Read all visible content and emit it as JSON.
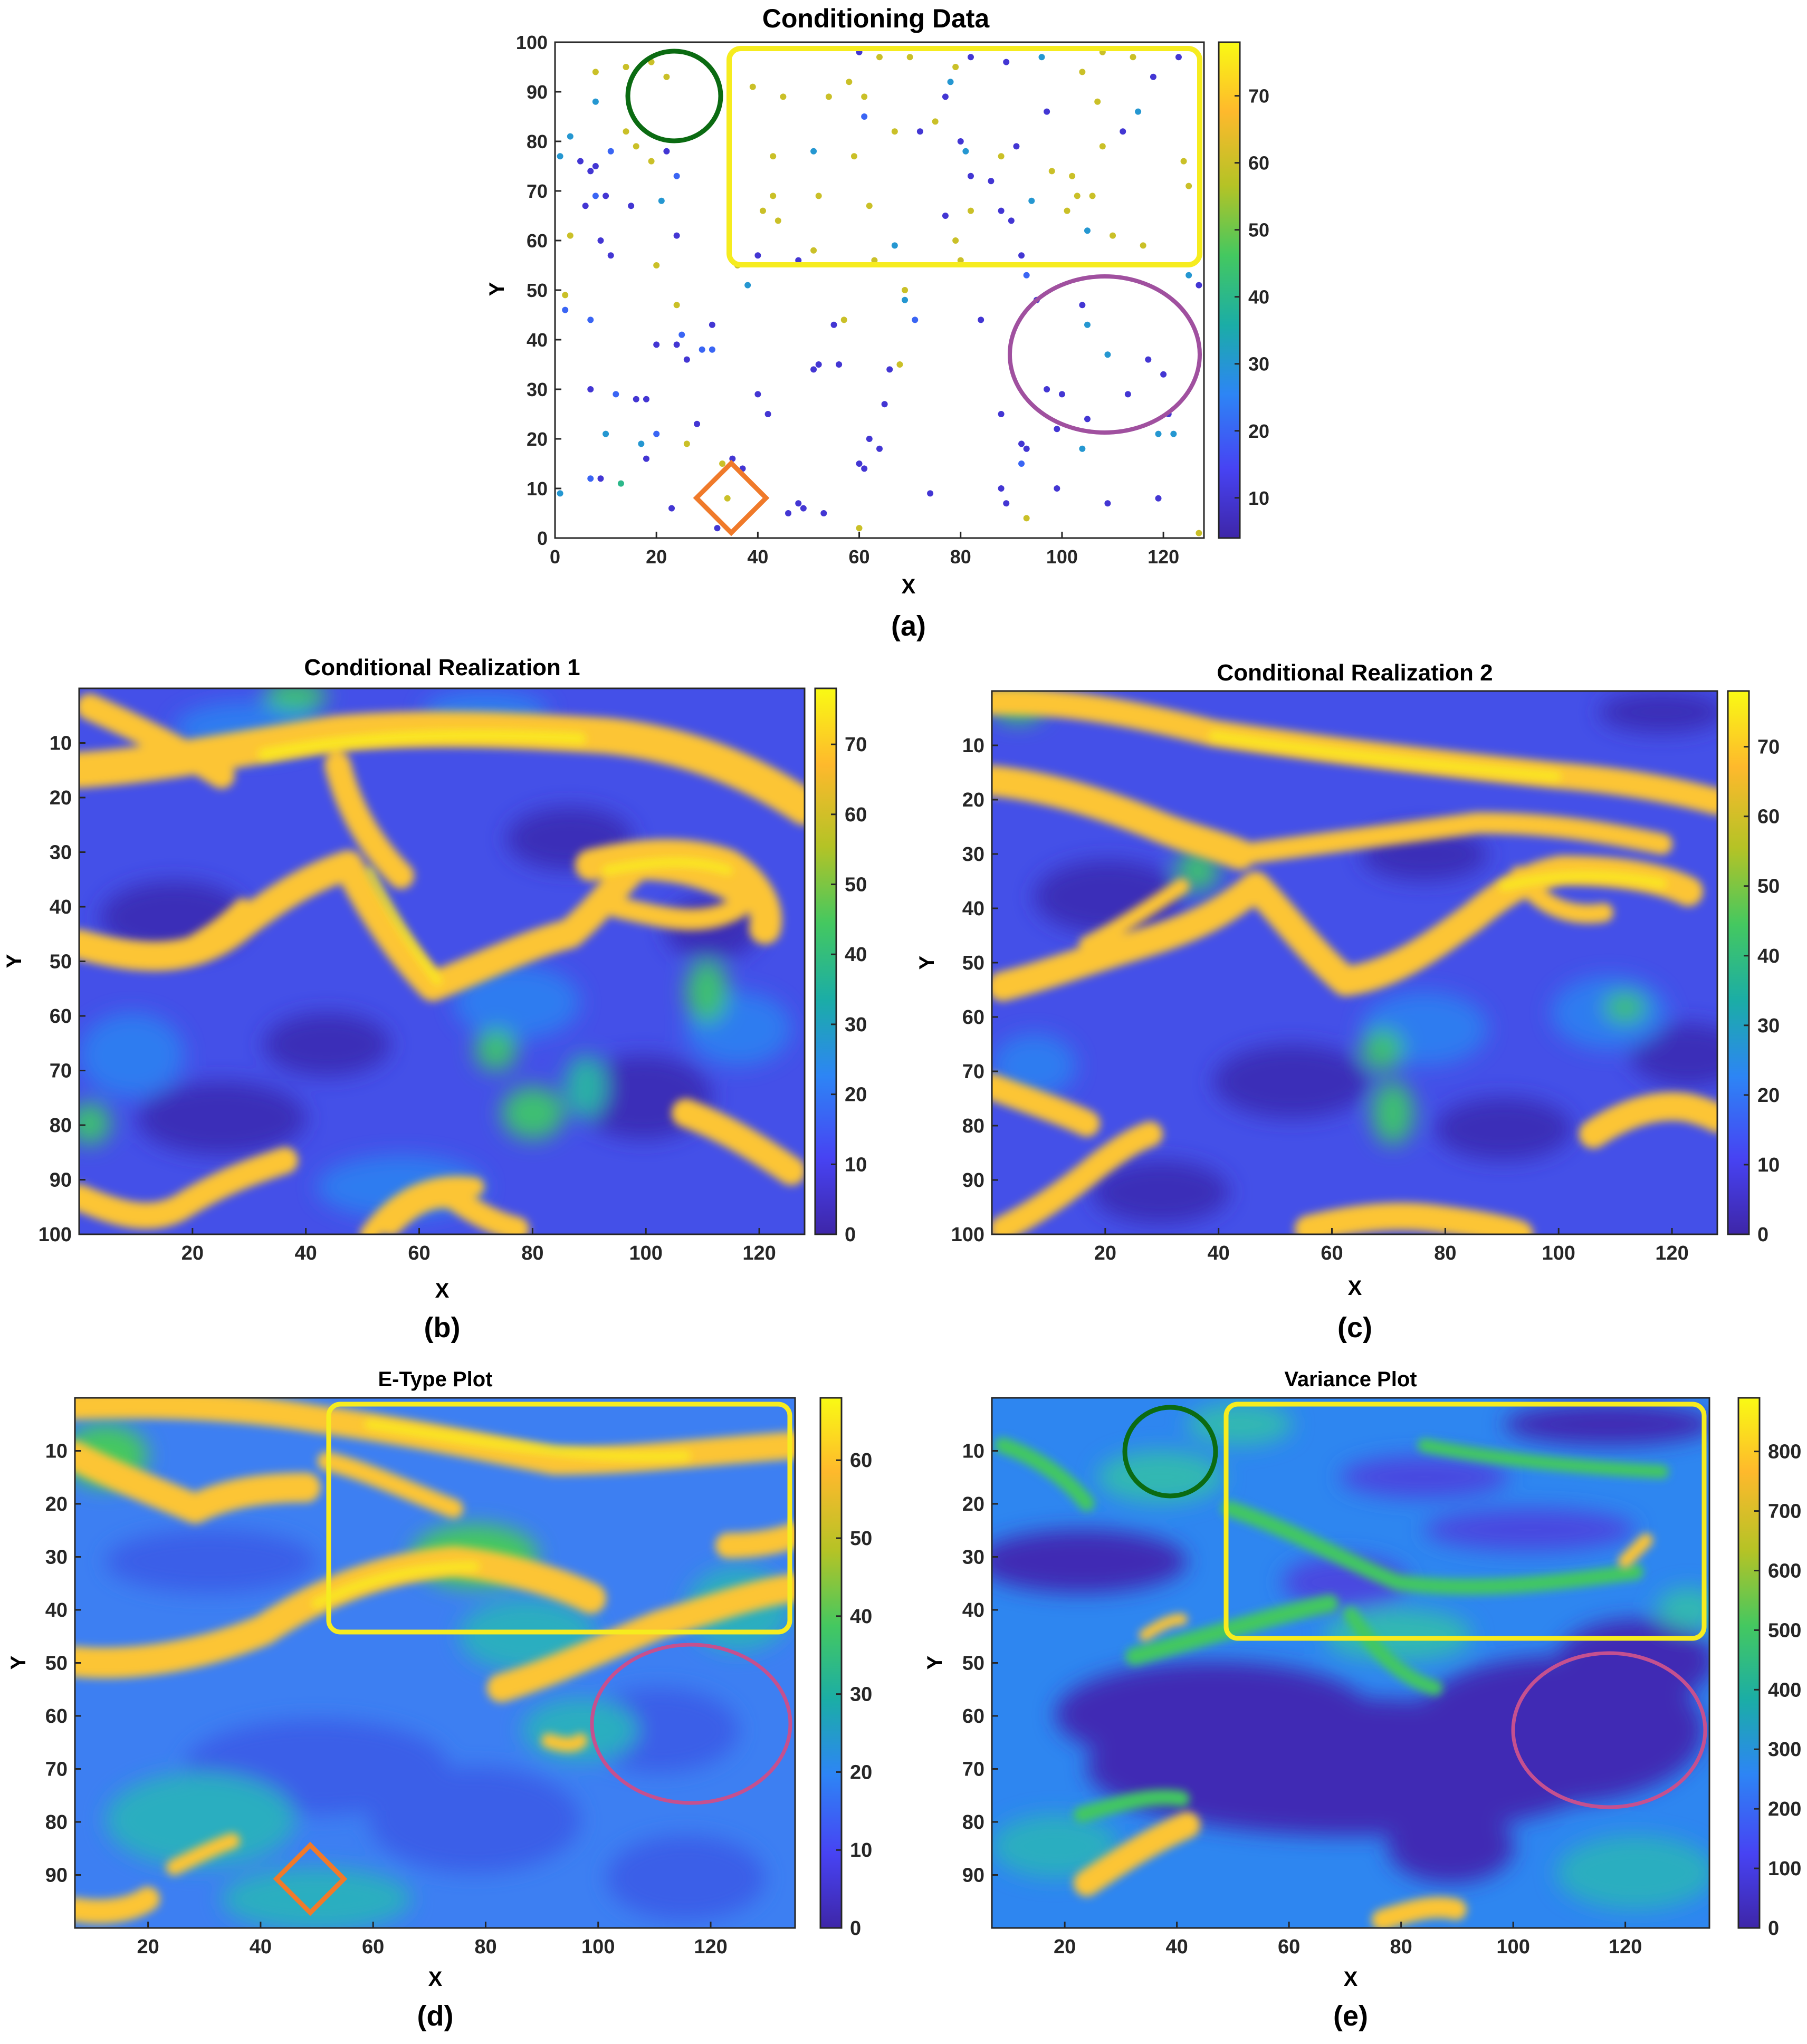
{
  "figure": {
    "captions": [
      "(a)",
      "(b)",
      "(c)",
      "(d)",
      "(e)"
    ],
    "colormap": [
      "#3e26a8",
      "#4743f3",
      "#2d85f5",
      "#1bada6",
      "#44c860",
      "#b4c326",
      "#feb92c",
      "#f9fa14"
    ]
  },
  "chart_data": [
    {
      "id": "a",
      "type": "scatter",
      "title": "Conditioning Data",
      "xlabel": "X",
      "ylabel": "Y",
      "xlim": [
        0,
        128
      ],
      "ylim": [
        0,
        100
      ],
      "xticks": [
        0,
        20,
        40,
        60,
        80,
        100,
        120
      ],
      "yticks": [
        0,
        10,
        20,
        30,
        40,
        50,
        60,
        70,
        80,
        90,
        100
      ],
      "colorbar": {
        "min": 4,
        "max": 78,
        "ticks": [
          10,
          20,
          30,
          40,
          50,
          60,
          70
        ]
      },
      "grid": false,
      "points": [
        [
          1,
          77,
          30
        ],
        [
          1,
          9,
          30
        ],
        [
          2,
          49,
          60
        ],
        [
          2,
          46,
          20
        ],
        [
          3,
          81,
          30
        ],
        [
          3,
          61,
          60
        ],
        [
          5,
          76,
          10
        ],
        [
          6,
          67,
          10
        ],
        [
          7,
          74,
          10
        ],
        [
          7,
          44,
          20
        ],
        [
          7,
          30,
          10
        ],
        [
          7,
          12,
          20
        ],
        [
          8,
          75,
          10
        ],
        [
          8,
          94,
          60
        ],
        [
          8,
          88,
          30
        ],
        [
          8,
          69,
          20
        ],
        [
          9,
          60,
          10
        ],
        [
          9,
          12,
          10
        ],
        [
          10,
          69,
          10
        ],
        [
          10,
          21,
          30
        ],
        [
          11,
          78,
          20
        ],
        [
          11,
          57,
          10
        ],
        [
          12,
          29,
          20
        ],
        [
          13,
          11,
          40
        ],
        [
          14,
          82,
          60
        ],
        [
          14,
          95,
          60
        ],
        [
          15,
          67,
          10
        ],
        [
          16,
          28,
          10
        ],
        [
          16,
          79,
          60
        ],
        [
          17,
          19,
          30
        ],
        [
          18,
          28,
          10
        ],
        [
          18,
          16,
          10
        ],
        [
          19,
          96,
          60
        ],
        [
          19,
          76,
          60
        ],
        [
          20,
          55,
          60
        ],
        [
          20,
          39,
          10
        ],
        [
          20,
          21,
          20
        ],
        [
          21,
          68,
          30
        ],
        [
          22,
          93,
          60
        ],
        [
          22,
          78,
          10
        ],
        [
          23,
          6,
          10
        ],
        [
          24,
          61,
          10
        ],
        [
          24,
          47,
          60
        ],
        [
          24,
          39,
          10
        ],
        [
          24,
          73,
          20
        ],
        [
          25,
          41,
          20
        ],
        [
          26,
          36,
          10
        ],
        [
          26,
          19,
          60
        ],
        [
          28,
          23,
          10
        ],
        [
          29,
          38,
          20
        ],
        [
          31,
          38,
          20
        ],
        [
          31,
          43,
          10
        ],
        [
          32,
          2,
          10
        ],
        [
          33,
          15,
          60
        ],
        [
          34,
          8,
          60
        ],
        [
          35,
          16,
          10
        ],
        [
          36,
          55,
          60
        ],
        [
          37,
          14,
          10
        ],
        [
          38,
          51,
          30
        ],
        [
          39,
          91,
          60
        ],
        [
          40,
          57,
          10
        ],
        [
          40,
          29,
          10
        ],
        [
          41,
          66,
          60
        ],
        [
          42,
          25,
          10
        ],
        [
          43,
          77,
          60
        ],
        [
          43,
          69,
          60
        ],
        [
          44,
          64,
          60
        ],
        [
          45,
          89,
          60
        ],
        [
          46,
          5,
          10
        ],
        [
          48,
          56,
          10
        ],
        [
          48,
          7,
          10
        ],
        [
          49,
          6,
          10
        ],
        [
          51,
          58,
          60
        ],
        [
          51,
          78,
          30
        ],
        [
          51,
          34,
          10
        ],
        [
          52,
          69,
          60
        ],
        [
          52,
          35,
          10
        ],
        [
          53,
          5,
          10
        ],
        [
          54,
          89,
          60
        ],
        [
          55,
          43,
          10
        ],
        [
          56,
          35,
          10
        ],
        [
          57,
          44,
          60
        ],
        [
          58,
          92,
          60
        ],
        [
          59,
          77,
          60
        ],
        [
          60,
          15,
          10
        ],
        [
          60,
          2,
          60
        ],
        [
          60,
          98,
          10
        ],
        [
          61,
          14,
          10
        ],
        [
          61,
          89,
          60
        ],
        [
          61,
          85,
          20
        ],
        [
          62,
          20,
          10
        ],
        [
          62,
          67,
          60
        ],
        [
          63,
          56,
          60
        ],
        [
          64,
          18,
          10
        ],
        [
          64,
          97,
          60
        ],
        [
          65,
          27,
          10
        ],
        [
          66,
          34,
          10
        ],
        [
          67,
          82,
          60
        ],
        [
          67,
          59,
          30
        ],
        [
          68,
          35,
          60
        ],
        [
          69,
          48,
          30
        ],
        [
          69,
          50,
          60
        ],
        [
          70,
          97,
          60
        ],
        [
          71,
          44,
          20
        ],
        [
          72,
          82,
          10
        ],
        [
          74,
          9,
          10
        ],
        [
          75,
          84,
          60
        ],
        [
          77,
          89,
          10
        ],
        [
          77,
          65,
          10
        ],
        [
          78,
          92,
          30
        ],
        [
          79,
          60,
          60
        ],
        [
          79,
          95,
          60
        ],
        [
          80,
          80,
          10
        ],
        [
          80,
          56,
          60
        ],
        [
          81,
          78,
          30
        ],
        [
          82,
          66,
          60
        ],
        [
          82,
          73,
          10
        ],
        [
          82,
          97,
          10
        ],
        [
          84,
          44,
          10
        ],
        [
          86,
          72,
          10
        ],
        [
          88,
          77,
          60
        ],
        [
          88,
          66,
          10
        ],
        [
          88,
          25,
          10
        ],
        [
          88,
          10,
          10
        ],
        [
          89,
          96,
          10
        ],
        [
          89,
          7,
          10
        ],
        [
          90,
          64,
          10
        ],
        [
          91,
          79,
          10
        ],
        [
          92,
          57,
          10
        ],
        [
          92,
          19,
          10
        ],
        [
          92,
          15,
          20
        ],
        [
          93,
          53,
          20
        ],
        [
          93,
          18,
          10
        ],
        [
          93,
          4,
          60
        ],
        [
          94,
          68,
          30
        ],
        [
          95,
          48,
          10
        ],
        [
          96,
          97,
          30
        ],
        [
          97,
          86,
          10
        ],
        [
          97,
          30,
          10
        ],
        [
          98,
          74,
          60
        ],
        [
          99,
          22,
          10
        ],
        [
          99,
          10,
          10
        ],
        [
          100,
          29,
          10
        ],
        [
          101,
          66,
          60
        ],
        [
          102,
          73,
          60
        ],
        [
          103,
          69,
          60
        ],
        [
          104,
          94,
          60
        ],
        [
          104,
          47,
          10
        ],
        [
          104,
          18,
          30
        ],
        [
          105,
          43,
          30
        ],
        [
          105,
          62,
          30
        ],
        [
          105,
          24,
          10
        ],
        [
          106,
          69,
          60
        ],
        [
          107,
          88,
          60
        ],
        [
          108,
          98,
          60
        ],
        [
          108,
          79,
          60
        ],
        [
          109,
          37,
          30
        ],
        [
          109,
          7,
          10
        ],
        [
          110,
          61,
          60
        ],
        [
          112,
          82,
          10
        ],
        [
          113,
          29,
          10
        ],
        [
          114,
          97,
          60
        ],
        [
          115,
          86,
          30
        ],
        [
          116,
          59,
          60
        ],
        [
          117,
          36,
          10
        ],
        [
          118,
          93,
          10
        ],
        [
          119,
          21,
          30
        ],
        [
          119,
          8,
          10
        ],
        [
          120,
          33,
          10
        ],
        [
          121,
          25,
          10
        ],
        [
          122,
          21,
          30
        ],
        [
          123,
          97,
          10
        ],
        [
          124,
          76,
          60
        ],
        [
          125,
          71,
          60
        ],
        [
          125,
          53,
          30
        ],
        [
          127,
          51,
          10
        ],
        [
          127,
          1,
          60
        ]
      ]
    },
    {
      "id": "b",
      "type": "heatmap",
      "title": "Conditional Realization 1",
      "xlabel": "X",
      "ylabel": "Y",
      "xlim": [
        0,
        128
      ],
      "ylim": [
        0,
        100
      ],
      "xticks": [
        20,
        40,
        60,
        80,
        100,
        120
      ],
      "yticks": [
        10,
        20,
        30,
        40,
        50,
        60,
        70,
        80,
        90,
        100
      ],
      "colorbar": {
        "min": 0,
        "max": 78,
        "ticks": [
          0,
          10,
          20,
          30,
          40,
          50,
          60,
          70
        ]
      }
    },
    {
      "id": "c",
      "type": "heatmap",
      "title": "Conditional Realization 2",
      "xlabel": "X",
      "ylabel": "Y",
      "xlim": [
        0,
        128
      ],
      "ylim": [
        0,
        100
      ],
      "xticks": [
        20,
        40,
        60,
        80,
        100,
        120
      ],
      "yticks": [
        10,
        20,
        30,
        40,
        50,
        60,
        70,
        80,
        90,
        100
      ],
      "colorbar": {
        "min": 0,
        "max": 78,
        "ticks": [
          0,
          10,
          20,
          30,
          40,
          50,
          60,
          70
        ]
      }
    },
    {
      "id": "d",
      "type": "heatmap",
      "title": "E-Type Plot",
      "xlabel": "X",
      "ylabel": "Y",
      "xlim": [
        7,
        135
      ],
      "ylim": [
        0,
        100
      ],
      "xticks": [
        20,
        40,
        60,
        80,
        100,
        120
      ],
      "yticks": [
        10,
        20,
        30,
        40,
        50,
        60,
        70,
        80,
        90
      ],
      "colorbar": {
        "min": 0,
        "max": 68,
        "ticks": [
          0,
          10,
          20,
          30,
          40,
          50,
          60
        ]
      }
    },
    {
      "id": "e",
      "type": "heatmap",
      "title": "Variance Plot",
      "xlabel": "X",
      "ylabel": "Y",
      "xlim": [
        7,
        135
      ],
      "ylim": [
        0,
        100
      ],
      "xticks": [
        20,
        40,
        60,
        80,
        100,
        120
      ],
      "yticks": [
        10,
        20,
        30,
        40,
        50,
        60,
        70,
        80,
        90
      ],
      "colorbar": {
        "min": 0,
        "max": 890,
        "ticks": [
          0,
          100,
          200,
          300,
          400,
          500,
          600,
          700,
          800
        ]
      }
    }
  ]
}
